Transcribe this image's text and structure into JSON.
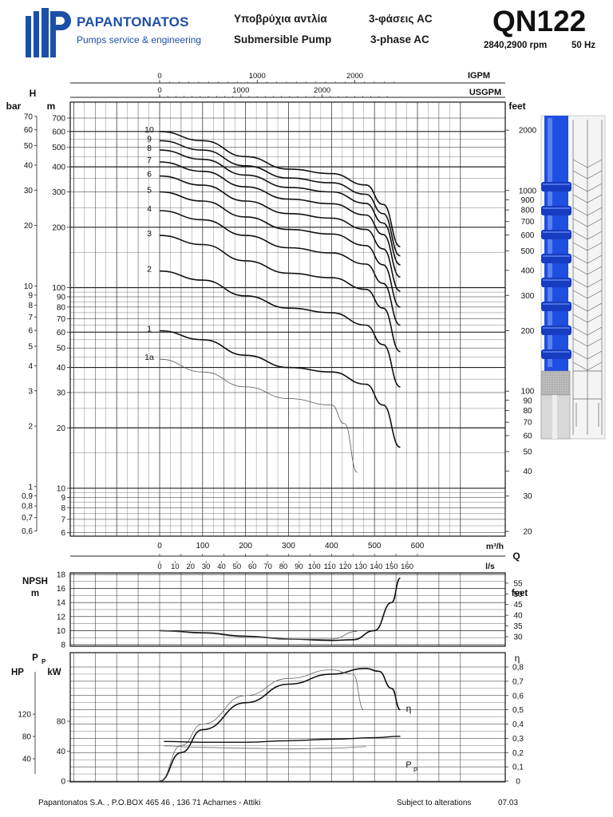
{
  "header": {
    "brand": "PAPANTONATOS",
    "tagline": "Pumps service & engineering",
    "product_gr": "Υποβρύχια αντλία",
    "product_en": "Submersible Pump",
    "phase_gr": "3-φάσεις AC",
    "phase_en": "3-phase AC",
    "model": "QN122",
    "rpm": "2840,2900 rpm",
    "freq": "50 Hz"
  },
  "footer": {
    "company": "Papantonatos S.A.  , P.O.BOX 465 46  , 136 71 Acharnes - Attiki",
    "notice": "Subject to alterations",
    "date": "07.03"
  },
  "colors": {
    "brand_blue": "#1d4fa8",
    "pump_blue": "#1e4fe0",
    "grid": "#222222"
  },
  "icons": {
    "logo": "pump-logo-icon",
    "pump": "submersible-pump-image"
  },
  "chart_data": [
    {
      "type": "line",
      "name": "head-curves",
      "xlabel": "Q",
      "x_unit_labels": [
        "m³/h",
        "l/s",
        "USGPM",
        "IGPM"
      ],
      "ylabel_left": [
        "H",
        "bar",
        "m"
      ],
      "ylabel_right": "feet",
      "xlim": [
        0,
        600
      ],
      "ylim": [
        6,
        700
      ],
      "yscale": "log",
      "grid": true,
      "ticks": {
        "m3h": [
          "0",
          "100",
          "200",
          "300",
          "400",
          "500",
          "600"
        ],
        "ls": [
          "0",
          "10",
          "20",
          "30",
          "40",
          "50",
          "60",
          "70",
          "80",
          "90",
          "100",
          "110",
          "120",
          "130",
          "140",
          "150",
          "160"
        ],
        "usgpm": [
          "0",
          "1000",
          "2000"
        ],
        "igpm": [
          "0",
          "1000",
          "2000"
        ],
        "m": [
          "700",
          "600",
          "500",
          "400",
          "300",
          "200",
          "100",
          "90",
          "80",
          "70",
          "60",
          "50",
          "40",
          "30",
          "20",
          "10",
          "9",
          "8",
          "7",
          "6"
        ],
        "bar": [
          "70",
          "60",
          "50",
          "40",
          "30",
          "20",
          "10",
          "9",
          "8",
          "7",
          "6",
          "5",
          "4",
          "3",
          "2",
          "1",
          "0,9",
          "0,8",
          "0,7",
          "0,6"
        ],
        "feet": [
          "2000",
          "1000",
          "900",
          "800",
          "700",
          "600",
          "500",
          "400",
          "300",
          "200",
          "100",
          "90",
          "80",
          "70",
          "60",
          "50",
          "40",
          "30",
          "20"
        ]
      },
      "series": [
        {
          "name": "10",
          "x": [
            0,
            100,
            200,
            300,
            400,
            480,
            520,
            560
          ],
          "y": [
            600,
            540,
            450,
            390,
            370,
            325,
            260,
            160
          ]
        },
        {
          "name": "9",
          "x": [
            0,
            100,
            200,
            300,
            400,
            480,
            520,
            560
          ],
          "y": [
            540,
            485,
            405,
            352,
            333,
            292,
            234,
            144
          ]
        },
        {
          "name": "8",
          "x": [
            0,
            100,
            200,
            300,
            400,
            480,
            520,
            560
          ],
          "y": [
            485,
            436,
            364,
            316,
            300,
            263,
            210,
            130
          ]
        },
        {
          "name": "7",
          "x": [
            0,
            100,
            200,
            300,
            400,
            480,
            520,
            560
          ],
          "y": [
            423,
            380,
            318,
            276,
            262,
            230,
            184,
            113
          ]
        },
        {
          "name": "6",
          "x": [
            0,
            100,
            200,
            300,
            400,
            480,
            520,
            560
          ],
          "y": [
            360,
            324,
            270,
            234,
            222,
            195,
            156,
            96
          ]
        },
        {
          "name": "5",
          "x": [
            0,
            100,
            200,
            300,
            400,
            480,
            520,
            560
          ],
          "y": [
            300,
            270,
            225,
            195,
            185,
            162,
            130,
            80
          ]
        },
        {
          "name": "4",
          "x": [
            0,
            100,
            200,
            300,
            400,
            480,
            520,
            560
          ],
          "y": [
            242,
            218,
            182,
            158,
            149,
            131,
            105,
            65
          ]
        },
        {
          "name": "3",
          "x": [
            0,
            100,
            200,
            300,
            400,
            480,
            520,
            560
          ],
          "y": [
            182,
            164,
            136,
            118,
            112,
            98,
            79,
            48
          ]
        },
        {
          "name": "2",
          "x": [
            0,
            100,
            200,
            300,
            400,
            480,
            520,
            560
          ],
          "y": [
            121,
            109,
            91,
            79,
            75,
            65,
            52,
            32
          ]
        },
        {
          "name": "1",
          "x": [
            0,
            100,
            200,
            300,
            400,
            480,
            520,
            560
          ],
          "y": [
            61,
            55,
            46,
            40,
            38,
            33,
            26,
            16
          ]
        },
        {
          "name": "1a",
          "x": [
            0,
            100,
            200,
            300,
            400,
            430,
            460
          ],
          "y": [
            44,
            38,
            32,
            28,
            26,
            21,
            12
          ]
        }
      ]
    },
    {
      "type": "line",
      "name": "npsh",
      "ylabel_left": [
        "NPSH",
        "m"
      ],
      "ylabel_right": "feet",
      "ylim": [
        8,
        18
      ],
      "xlim": [
        0,
        600
      ],
      "grid": true,
      "ticks": {
        "m": [
          "18",
          "16",
          "14",
          "12",
          "10",
          "8"
        ],
        "feet": [
          "55",
          "50",
          "45",
          "40",
          "35",
          "30"
        ]
      },
      "series": [
        {
          "name": "NPSH",
          "x": [
            0,
            100,
            200,
            300,
            400,
            450,
            500,
            540,
            560
          ],
          "y": [
            10,
            9.7,
            9.2,
            8.8,
            8.6,
            8.7,
            10,
            14,
            17.5
          ]
        },
        {
          "name": "NPSH-1a",
          "x": [
            0,
            100,
            200,
            300,
            400,
            460
          ],
          "y": [
            10,
            9.6,
            9.1,
            8.8,
            8.8,
            9.9
          ]
        }
      ]
    },
    {
      "type": "line",
      "name": "power-efficiency",
      "ylabel_left": [
        "HP",
        "P",
        "P",
        "kW"
      ],
      "ylabel_right": "η",
      "xlim": [
        0,
        600
      ],
      "grid": true,
      "ticks": {
        "kw": [
          "80",
          "40",
          "0"
        ],
        "hp": [
          "120",
          "80",
          "40"
        ],
        "eta": [
          "0,8",
          "0,7",
          "0,6",
          "0,5",
          "0,4",
          "0,3",
          "0,2",
          "0,1",
          "0"
        ]
      },
      "efficiency_series": [
        {
          "name": "η",
          "x": [
            0,
            50,
            100,
            200,
            300,
            400,
            480,
            510,
            540,
            560
          ],
          "y": [
            0.0,
            0.2,
            0.36,
            0.55,
            0.68,
            0.75,
            0.79,
            0.77,
            0.65,
            0.5
          ]
        },
        {
          "name": "η-1a",
          "x": [
            0,
            50,
            100,
            200,
            300,
            400,
            450,
            475
          ],
          "y": [
            0.0,
            0.25,
            0.4,
            0.6,
            0.72,
            0.78,
            0.75,
            0.5
          ]
        }
      ],
      "power_series": [
        {
          "name": "P",
          "x": [
            10,
            100,
            200,
            300,
            400,
            500,
            560
          ],
          "y": [
            53,
            52,
            52,
            54,
            56,
            58,
            60
          ]
        },
        {
          "name": "P-1a",
          "x": [
            10,
            100,
            200,
            300,
            400,
            480
          ],
          "y": [
            47,
            45,
            44,
            43,
            44,
            46
          ]
        }
      ]
    }
  ]
}
